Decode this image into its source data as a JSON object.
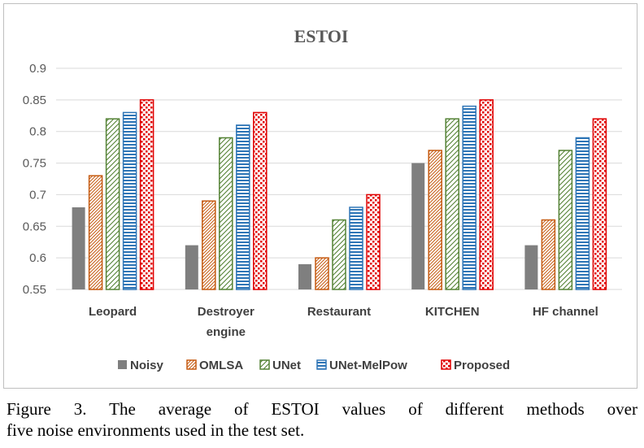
{
  "chart_data": {
    "type": "bar",
    "title": "ESTOI",
    "xlabel": "",
    "ylabel": "",
    "ylim": [
      0.55,
      0.9
    ],
    "yticks": [
      "0.55",
      "0.6",
      "0.65",
      "0.7",
      "0.75",
      "0.8",
      "0.85",
      "0.9"
    ],
    "ytick_values": [
      0.55,
      0.6,
      0.65,
      0.7,
      0.75,
      0.8,
      0.85,
      0.9
    ],
    "grid": true,
    "legend_position": "bottom",
    "categories": [
      [
        "Leopard"
      ],
      [
        "Destroyer",
        "engine"
      ],
      [
        "Restaurant"
      ],
      [
        "KITCHEN"
      ],
      [
        "HF channel"
      ]
    ],
    "series": [
      {
        "name": "Noisy",
        "values": [
          0.68,
          0.62,
          0.59,
          0.75,
          0.62
        ],
        "color": "#7f7f7f",
        "pattern": "solid"
      },
      {
        "name": "OMLSA",
        "values": [
          0.73,
          0.69,
          0.6,
          0.77,
          0.66
        ],
        "color": "#c55a11",
        "pattern": "dense-diagonal"
      },
      {
        "name": "UNet",
        "values": [
          0.82,
          0.79,
          0.66,
          0.82,
          0.77
        ],
        "color": "#548235",
        "pattern": "wide-diagonal"
      },
      {
        "name": "UNet-MelPow",
        "values": [
          0.83,
          0.81,
          0.68,
          0.84,
          0.79
        ],
        "color": "#2e75b6",
        "pattern": "horizontal"
      },
      {
        "name": "Proposed",
        "values": [
          0.85,
          0.83,
          0.7,
          0.85,
          0.82
        ],
        "color": "#e00000",
        "pattern": "dots"
      }
    ]
  },
  "caption": {
    "line1": "Figure 3. The average of ESTOI values of different methods over",
    "line2": "five noise environments used in the test set."
  }
}
